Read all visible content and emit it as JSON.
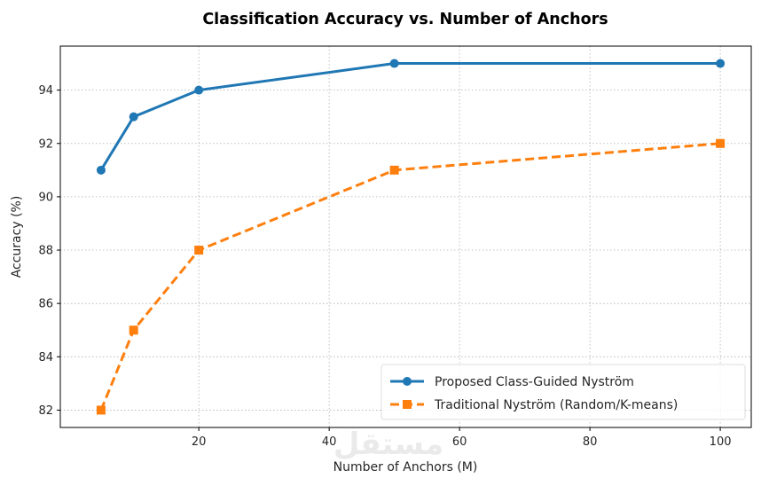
{
  "chart_data": {
    "type": "line",
    "title": "Classification Accuracy vs. Number of Anchors",
    "xlabel": "Number of Anchors (M)",
    "ylabel": "Accuracy (%)",
    "xlim": [
      -1.25,
      104.75
    ],
    "ylim": [
      81.35,
      95.65
    ],
    "xticks": [
      20,
      40,
      60,
      80,
      100
    ],
    "yticks": [
      82,
      84,
      86,
      88,
      90,
      92,
      94
    ],
    "grid": true,
    "legend_position": "lower-right",
    "series": [
      {
        "name": "Proposed Class-Guided Nyström",
        "x": [
          5,
          10,
          20,
          50,
          100
        ],
        "y": [
          91,
          93,
          94,
          95,
          95
        ],
        "color": "#1f77b4",
        "line_style": "solid",
        "marker": "circle"
      },
      {
        "name": "Traditional Nyström (Random/K-means)",
        "x": [
          5,
          10,
          20,
          50,
          100
        ],
        "y": [
          82,
          85,
          88,
          91,
          92
        ],
        "color": "#ff7f0e",
        "line_style": "dashed",
        "marker": "square"
      }
    ]
  },
  "watermark": "مستقل"
}
